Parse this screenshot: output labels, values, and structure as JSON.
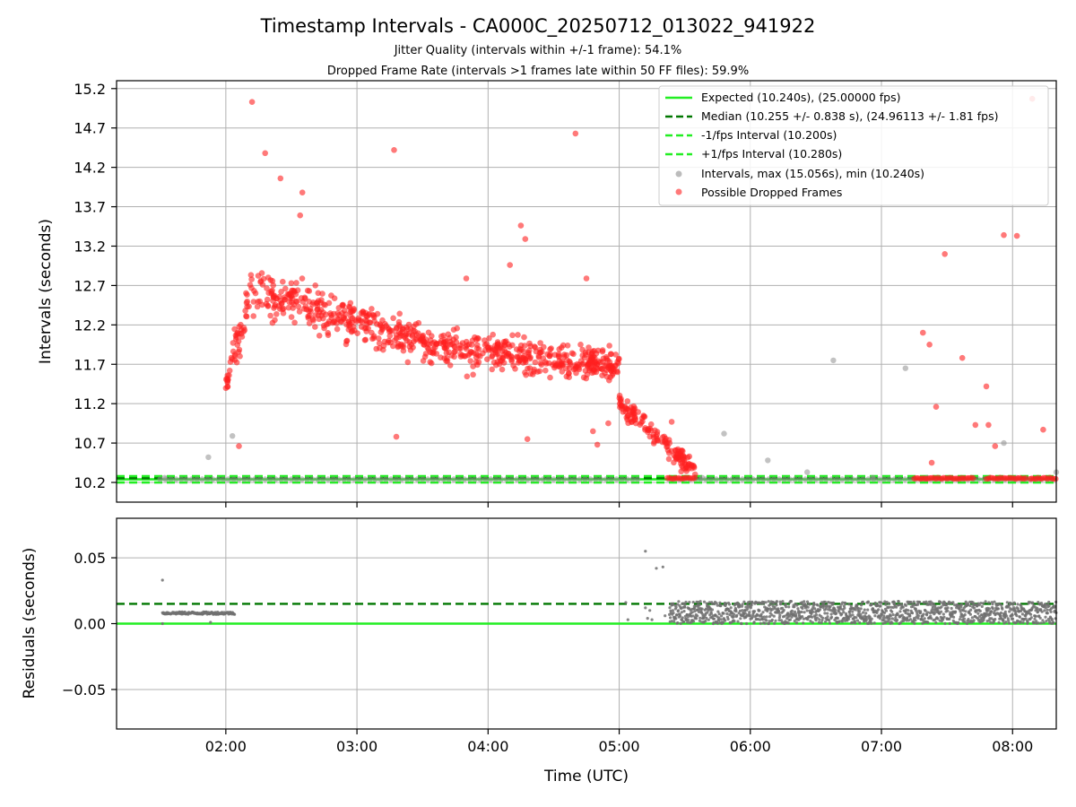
{
  "title": "Timestamp Intervals - CA000C_20250712_013022_941922",
  "subtitle_1": "Jitter Quality (intervals within +/-1 frame): 54.1%",
  "subtitle_2": "Dropped Frame Rate (intervals >1 frames late within 50 FF files): 59.9%",
  "colors": {
    "expected": "#22ee22",
    "median": "#007700",
    "bounds": "#22ee22",
    "intervals": "#909090",
    "dropped": "#ff2020",
    "residuals": "#707070"
  },
  "chart_data": [
    {
      "type": "scatter",
      "ylabel": "Intervals (seconds)",
      "xlim": [
        "01:10",
        "08:20"
      ],
      "ylim": [
        9.95,
        15.3
      ],
      "x_ticks": [
        "02:00",
        "03:00",
        "04:00",
        "05:00",
        "06:00",
        "07:00",
        "08:00"
      ],
      "y_ticks": [
        "10.2",
        "10.7",
        "11.2",
        "11.7",
        "12.2",
        "12.7",
        "13.2",
        "13.7",
        "14.2",
        "14.7",
        "15.2"
      ],
      "grid": true,
      "legend_position": "top-right",
      "legend": [
        "Expected (10.240s), (25.00000 fps)",
        "Median (10.255 +/- 0.838 s), (24.96113 +/- 1.81 fps)",
        "-1/fps Interval (10.200s)",
        "+1/fps Interval (10.280s)",
        "Intervals, max (15.056s), min (10.240s)",
        "Possible Dropped Frames"
      ],
      "lines": [
        {
          "name": "Expected",
          "y": 10.24,
          "style": "solid"
        },
        {
          "name": "Median",
          "y": 10.255,
          "style": "dashed"
        },
        {
          "name": "-1/fps Interval",
          "y": 10.2,
          "style": "dashed"
        },
        {
          "name": "+1/fps Interval",
          "y": 10.28,
          "style": "dashed"
        }
      ],
      "gray_points": [
        [
          "01:32",
          10.26
        ],
        [
          "01:52",
          10.52
        ],
        [
          "02:03",
          10.79
        ],
        [
          "05:38",
          10.26
        ],
        [
          "05:48",
          10.82
        ],
        [
          "06:08",
          10.48
        ],
        [
          "06:26",
          10.33
        ],
        [
          "06:38",
          11.75
        ],
        [
          "06:56",
          10.26
        ],
        [
          "07:11",
          11.65
        ],
        [
          "07:21",
          10.26
        ],
        [
          "07:56",
          10.7
        ],
        [
          "08:02",
          10.26
        ],
        [
          "08:20",
          10.33
        ]
      ],
      "dropped_points": [
        [
          "02:12",
          15.03
        ],
        [
          "02:18",
          14.38
        ],
        [
          "02:25",
          14.06
        ],
        [
          "02:34",
          13.59
        ],
        [
          "02:35",
          13.88
        ],
        [
          "03:17",
          14.42
        ],
        [
          "04:40",
          14.63
        ],
        [
          "07:29",
          13.1
        ],
        [
          "07:56",
          13.34
        ],
        [
          "08:02",
          13.33
        ],
        [
          "08:09",
          15.07
        ],
        [
          "03:27",
          12.21
        ],
        [
          "03:50",
          12.79
        ],
        [
          "04:10",
          12.96
        ],
        [
          "04:15",
          13.46
        ],
        [
          "04:17",
          13.29
        ],
        [
          "04:45",
          12.79
        ],
        [
          "07:19",
          12.1
        ],
        [
          "07:22",
          11.95
        ],
        [
          "07:37",
          11.78
        ],
        [
          "07:48",
          11.42
        ],
        [
          "07:25",
          11.16
        ],
        [
          "07:43",
          10.93
        ],
        [
          "07:49",
          10.93
        ],
        [
          "07:52",
          10.66
        ],
        [
          "08:14",
          10.87
        ],
        [
          "07:23",
          10.45
        ],
        [
          "04:18",
          10.75
        ],
        [
          "03:18",
          10.78
        ],
        [
          "02:06",
          10.66
        ],
        [
          "04:48",
          10.85
        ],
        [
          "04:50",
          10.68
        ],
        [
          "04:55",
          10.95
        ],
        [
          "05:24",
          10.97
        ]
      ],
      "dropped_cluster_note": "",
      "dropped_band_ranges": [
        [
          "05:22",
          "05:35"
        ],
        [
          "07:15",
          "07:42"
        ],
        [
          "07:48",
          "08:06"
        ],
        [
          "08:08",
          "08:20"
        ]
      ]
    },
    {
      "type": "scatter",
      "xlabel": "Time (UTC)",
      "ylabel": "Residuals (seconds)",
      "xlim": [
        "01:10",
        "08:20"
      ],
      "ylim": [
        -0.08,
        0.08
      ],
      "x_ticks": [
        "02:00",
        "03:00",
        "04:00",
        "05:00",
        "06:00",
        "07:00",
        "08:00"
      ],
      "y_ticks": [
        "0.05",
        "0.00",
        "−0.05"
      ],
      "grid": true,
      "lines": [
        {
          "name": "Expected",
          "y": 0.0,
          "style": "solid"
        },
        {
          "name": "Median",
          "y": 0.015,
          "style": "dashed"
        }
      ],
      "segments": [
        {
          "x_range": [
            "01:31",
            "02:04"
          ],
          "y_center": 0.008,
          "spread": 0.002
        },
        {
          "x_range": [
            "05:23",
            "08:20"
          ],
          "y_range": [
            0.0,
            0.017
          ]
        }
      ],
      "outliers": [
        [
          "01:31",
          0.033
        ],
        [
          "01:31",
          0.0
        ],
        [
          "01:53",
          0.001
        ],
        [
          "05:03",
          0.016
        ],
        [
          "05:04",
          0.003
        ],
        [
          "05:12",
          0.055
        ],
        [
          "05:17",
          0.042
        ],
        [
          "05:20",
          0.043
        ],
        [
          "05:12",
          0.012
        ],
        [
          "05:13",
          0.004
        ],
        [
          "05:14",
          0.01
        ],
        [
          "05:15",
          0.003
        ],
        [
          "05:21",
          0.006
        ]
      ]
    }
  ]
}
